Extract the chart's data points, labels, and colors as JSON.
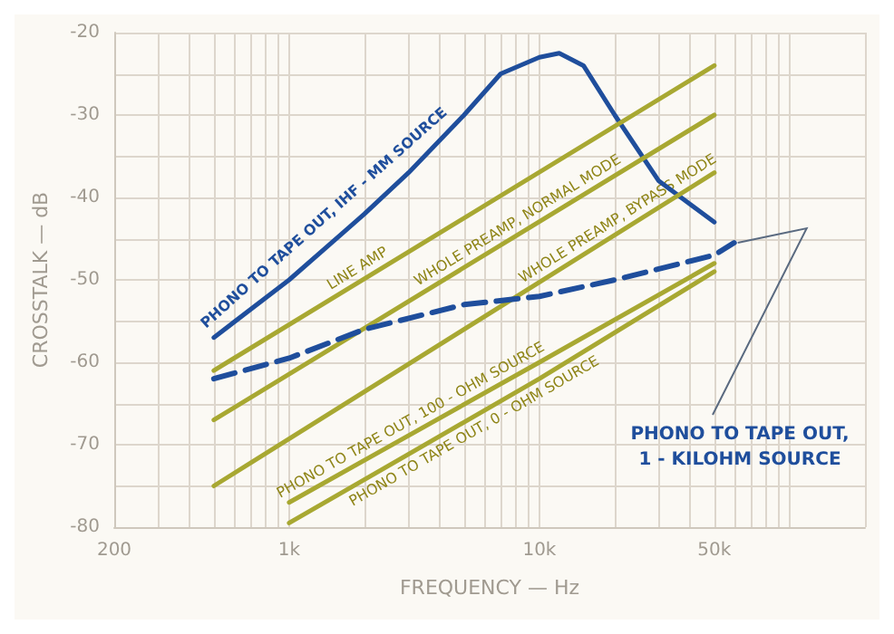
{
  "chart_data": {
    "type": "line",
    "xlabel": "FREQUENCY — Hz",
    "ylabel": "CROSSTALK — dB",
    "log": "x",
    "grid": true,
    "legend": false,
    "marker": "none",
    "xlim": [
      200,
      200000
    ],
    "ylim": [
      -80,
      -20
    ],
    "xticks": [
      200,
      {
        "value": 300,
        "label": null
      },
      {
        "value": 400,
        "label": null
      },
      {
        "value": 500,
        "label": null
      },
      {
        "value": 600,
        "label": null
      },
      {
        "value": 700,
        "label": null
      },
      {
        "value": 800,
        "label": null
      },
      {
        "value": 900,
        "label": null
      },
      {
        "value": 1000,
        "label": "1k"
      },
      {
        "value": 2000,
        "label": null
      },
      {
        "value": 3000,
        "label": null
      },
      {
        "value": 4000,
        "label": null
      },
      {
        "value": 5000,
        "label": null
      },
      {
        "value": 6000,
        "label": null
      },
      {
        "value": 7000,
        "label": null
      },
      {
        "value": 8000,
        "label": null
      },
      {
        "value": 9000,
        "label": null
      },
      {
        "value": 10000,
        "label": "10k"
      },
      {
        "value": 20000,
        "label": null
      },
      {
        "value": 30000,
        "label": null
      },
      {
        "value": 40000,
        "label": null
      },
      {
        "value": 50000,
        "label": "50k"
      },
      {
        "value": 60000,
        "label": null
      },
      {
        "value": 70000,
        "label": null
      },
      {
        "value": 80000,
        "label": null
      },
      {
        "value": 90000,
        "label": null
      },
      {
        "value": 100000,
        "label": null
      },
      {
        "value": 200000,
        "label": null
      }
    ],
    "yticks": [
      -80,
      {
        "value": -75,
        "label": null
      },
      -70,
      {
        "value": -65,
        "label": null
      },
      -60,
      {
        "value": -55,
        "label": null
      },
      -50,
      {
        "value": -45,
        "label": null
      },
      -40,
      {
        "value": -35,
        "label": null
      },
      -30,
      {
        "value": -25,
        "label": null
      },
      -20
    ],
    "series": [
      {
        "name": "PHONO TO TAPE OUT, IHF - MM SOURCE",
        "color": "#1f4e9c",
        "x": [
          500,
          1000,
          2000,
          3000,
          5000,
          7000,
          10000,
          12000,
          15000,
          20000,
          30000,
          50000
        ],
        "values": [
          -57,
          -50,
          -42,
          -37,
          -30,
          -25,
          -23,
          -22.5,
          -24,
          -30,
          -38,
          -43
        ]
      },
      {
        "name": "LINE AMP",
        "color": "#a8a832",
        "x": [
          500,
          50000
        ],
        "values": [
          -61,
          -24
        ]
      },
      {
        "name": "WHOLE PREAMP, NORMAL MODE",
        "color": "#a8a832",
        "x": [
          500,
          50000
        ],
        "values": [
          -67,
          -30
        ]
      },
      {
        "name": "WHOLE PREAMP, BYPASS MODE",
        "color": "#a8a832",
        "x": [
          500,
          50000
        ],
        "values": [
          -75,
          -37
        ]
      },
      {
        "name": "PHONO TO TAPE OUT, 100 - OHM SOURCE",
        "color": "#a8a832",
        "x": [
          1000,
          10000,
          50000
        ],
        "values": [
          -77,
          -60,
          -48
        ]
      },
      {
        "name": "PHONO TO TAPE OUT, 0 - OHM SOURCE",
        "color": "#a8a832",
        "x": [
          1000,
          10000,
          50000
        ],
        "values": [
          -79.5,
          -62,
          -49
        ]
      },
      {
        "name": "PHONO TO TAPE OUT, 1 - KILOHM SOURCE",
        "color": "#1f4e9c",
        "line_style": "dashed",
        "x": [
          500,
          1000,
          2000,
          5000,
          10000,
          20000,
          50000,
          60000
        ],
        "values": [
          -62,
          -59.5,
          -56,
          -53,
          -52,
          -50,
          -47,
          -45.5
        ]
      }
    ]
  }
}
